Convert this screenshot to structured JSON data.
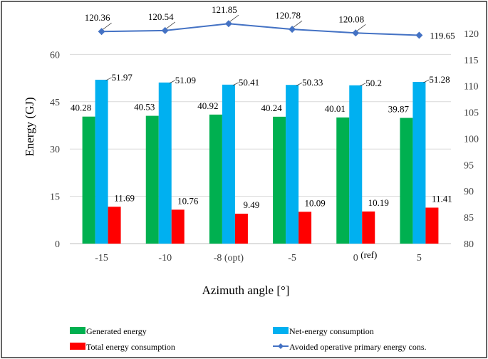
{
  "chart_data": {
    "type": "bar",
    "categories": [
      "-15",
      "-10",
      "-8 (opt)",
      "-5",
      "0",
      "5"
    ],
    "category_annotations": [
      {
        "category": "0",
        "text": "(ref)"
      }
    ],
    "series": [
      {
        "name": "Generated energy",
        "kind": "bar",
        "axis": "left",
        "color": "#00b050",
        "values": [
          40.28,
          40.53,
          40.92,
          40.24,
          40.01,
          39.87
        ],
        "labels": [
          "40.28",
          "40.53",
          "40.92",
          "40.24",
          "40.01",
          "39.87"
        ]
      },
      {
        "name": "Net-energy consumption",
        "kind": "bar",
        "axis": "left",
        "color": "#00b0f0",
        "values": [
          51.97,
          51.09,
          50.41,
          50.33,
          50.2,
          51.28
        ],
        "labels": [
          "51.97",
          "51.09",
          "50.41",
          "50.33",
          "50.2",
          "51.28"
        ]
      },
      {
        "name": "Total energy consumption",
        "kind": "bar",
        "axis": "left",
        "color": "#ff0000",
        "values": [
          11.69,
          10.76,
          9.49,
          10.09,
          10.19,
          11.41
        ],
        "labels": [
          "11.69",
          "10.76",
          "9.49",
          "10.09",
          "10.19",
          "11.41"
        ]
      },
      {
        "name": "Avoided operative primary energy cons.",
        "kind": "line",
        "axis": "right",
        "color": "#4472c4",
        "values": [
          120.36,
          120.54,
          121.85,
          120.78,
          120.08,
          119.65
        ],
        "labels": [
          "120.36",
          "120.54",
          "121.85",
          "120.78",
          "120.08",
          "119.65"
        ]
      }
    ],
    "xlabel": "Azimuth angle [°]",
    "ylabel": "Energy (GJ)",
    "ylim": [
      0,
      75
    ],
    "yticks": [
      "0",
      "15",
      "30",
      "45",
      "60"
    ],
    "y2lim": [
      80,
      125
    ],
    "y2ticks": [
      "80",
      "85",
      "90",
      "95",
      "100",
      "105",
      "110",
      "115",
      "120"
    ],
    "grid": true,
    "legend": "bottom"
  }
}
